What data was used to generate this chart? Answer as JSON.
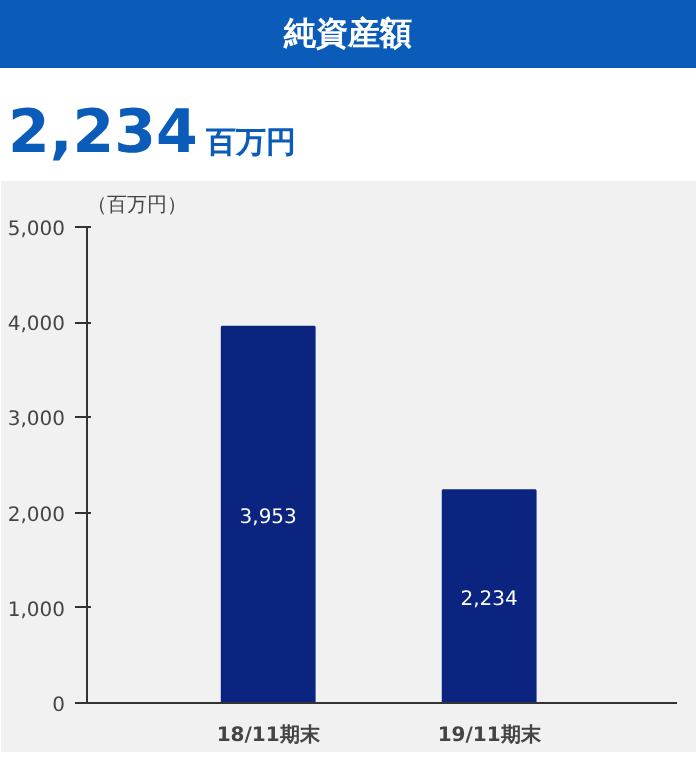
{
  "chart_data": {
    "type": "bar",
    "title": "純資産額",
    "subtitle": "2,234百万円",
    "ylabel": "（百万円）",
    "categories": [
      "18/11期末",
      "19/11期末"
    ],
    "values": [
      3953,
      2234
    ],
    "color": "#0b2480",
    "ylim": [
      0,
      5000
    ],
    "yticks": [
      {
        "value": 0,
        "label": "0"
      },
      {
        "value": 1000,
        "label": "1,000"
      },
      {
        "value": 2000,
        "label": "2,000"
      },
      {
        "value": 3000,
        "label": "3,000"
      },
      {
        "value": 4000,
        "label": "4,000"
      },
      {
        "value": 5000,
        "label": "5,000"
      }
    ],
    "grid": false,
    "value_labels": [
      "3,953",
      "2,234"
    ]
  }
}
